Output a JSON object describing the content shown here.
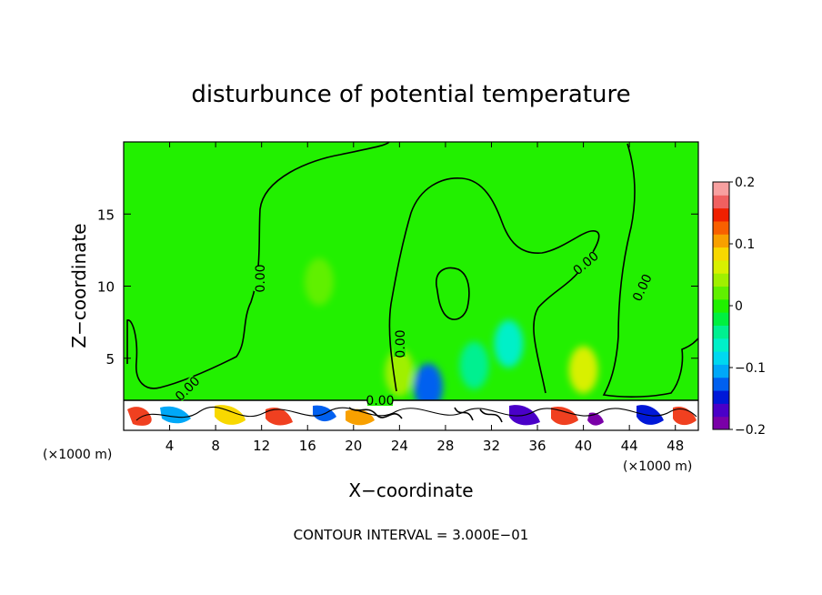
{
  "chart_data": {
    "type": "heatmap",
    "title": "disturbunce of potential temperature",
    "xlabel": "X−coordinate",
    "ylabel": "Z−coordinate",
    "x_unit_left": "(×1000 m)",
    "x_unit_right": "(×1000 m)",
    "xlim": [
      0,
      50
    ],
    "ylim": [
      0,
      20
    ],
    "x_ticks": [
      4,
      8,
      12,
      16,
      20,
      24,
      28,
      32,
      36,
      40,
      44,
      48
    ],
    "y_ticks": [
      5,
      10,
      15
    ],
    "footer": "CONTOUR INTERVAL = 3.000E−01",
    "contour_labels": [
      "0.00",
      "0.00",
      "0.00",
      "0.00",
      "0.00",
      "0.00"
    ],
    "colorbar": {
      "range": [
        -0.2,
        0.2
      ],
      "tick_labels": [
        "0.2",
        "0.1",
        "0",
        "−0.1",
        "−0.2"
      ],
      "tick_values": [
        0.2,
        0.1,
        0,
        -0.1,
        -0.2
      ],
      "colors": [
        "#7a00a8",
        "#4a00c8",
        "#0018d8",
        "#0060f0",
        "#00a8f8",
        "#00d8f0",
        "#00f0c8",
        "#00f090",
        "#00f040",
        "#20f000",
        "#60f000",
        "#a0f000",
        "#d8f000",
        "#f8d800",
        "#f8a000",
        "#f86000",
        "#f02000",
        "#f06060",
        "#f8a0a0"
      ]
    },
    "background_color": "#22f000",
    "features": [
      {
        "x": 24.0,
        "z": 4.0,
        "value": 0.05
      },
      {
        "x": 40.0,
        "z": 4.2,
        "value": 0.07
      },
      {
        "x": 26.5,
        "z": 3.0,
        "value": -0.12
      },
      {
        "x": 33.5,
        "z": 6.0,
        "value": -0.07
      },
      {
        "x": 30.5,
        "z": 4.5,
        "value": -0.05
      },
      {
        "x": 17.0,
        "z": 10.3,
        "value": 0.02
      }
    ]
  }
}
